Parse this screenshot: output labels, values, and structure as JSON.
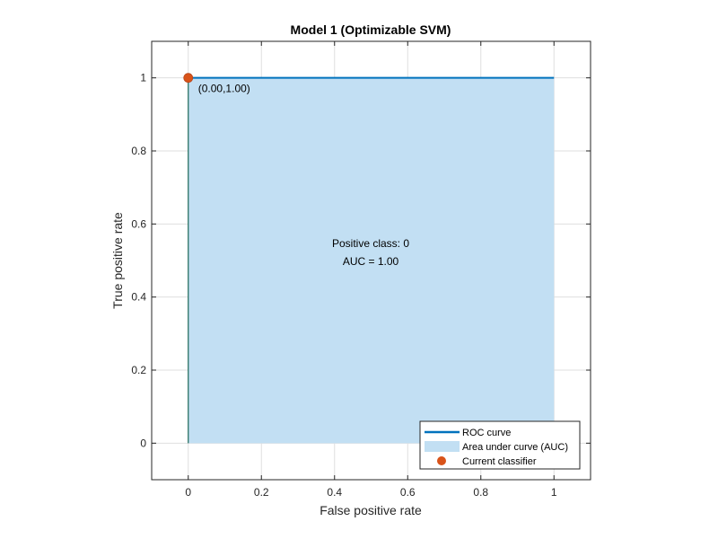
{
  "chart_data": {
    "type": "area",
    "title": "Model 1 (Optimizable SVM)",
    "xlabel": "False positive rate",
    "ylabel": "True positive rate",
    "xlim": [
      -0.1,
      1.1
    ],
    "ylim": [
      -0.1,
      1.1
    ],
    "xticks": [
      0,
      0.2,
      0.4,
      0.6,
      0.8,
      1
    ],
    "xtick_labels": [
      "0",
      "0.2",
      "0.4",
      "0.6",
      "0.8",
      "1"
    ],
    "yticks": [
      0,
      0.2,
      0.4,
      0.6,
      0.8,
      1
    ],
    "ytick_labels": [
      "0",
      "0.2",
      "0.4",
      "0.6",
      "0.8",
      "1"
    ],
    "grid": true,
    "series": [
      {
        "name": "ROC curve",
        "x": [
          0,
          0,
          1
        ],
        "y": [
          0,
          1,
          1
        ],
        "color": "#0072BD"
      },
      {
        "name": "Area under curve (AUC)",
        "x": [
          0,
          0,
          1,
          1
        ],
        "y": [
          0,
          1,
          1,
          0
        ],
        "color": "#C2DFF3"
      },
      {
        "name": "Current classifier",
        "x": [
          0
        ],
        "y": [
          1
        ],
        "color": "#D95319"
      }
    ],
    "point_label": "(0.00,1.00)",
    "annotation_lines": [
      "Positive class: 0",
      "AUC = 1.00"
    ],
    "legend_position": "bottom-right"
  }
}
